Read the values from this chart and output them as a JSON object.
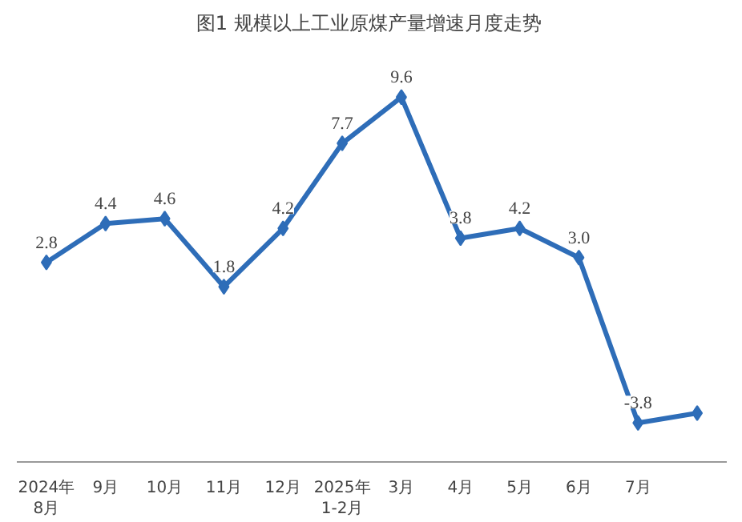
{
  "chart_data": {
    "type": "line",
    "title": "图1  规模以上工业原煤产量增速月度走势",
    "categories": [
      "2024年\n8月",
      "9月",
      "10月",
      "11月",
      "12月",
      "2025年\n1-2月",
      "3月",
      "4月",
      "5月",
      "6月",
      "7月",
      null
    ],
    "series": [
      {
        "color": "#2e6db8",
        "values": [
          2.8,
          4.4,
          4.6,
          1.8,
          4.2,
          7.7,
          9.6,
          3.8,
          4.2,
          3.0,
          -3.8,
          -3.4
        ],
        "value_labels": [
          "2.8",
          "4.4",
          "4.6",
          "1.8",
          "4.2",
          "7.7",
          "9.6",
          "3.8",
          "4.2",
          "3.0",
          "-3.8",
          null
        ]
      }
    ],
    "marker": "diamond",
    "grid": false,
    "tick_labels": "x"
  }
}
